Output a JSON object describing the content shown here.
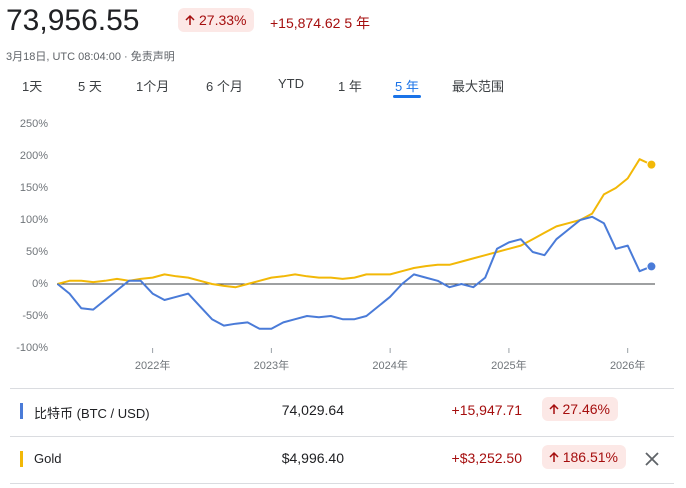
{
  "header": {
    "price": "73,956.55",
    "change_pct": "27.33%",
    "change_abs": "+15,874.62",
    "period": "5 年",
    "timestamp": "3月18日, UTC 08:04:00 · ",
    "disclaimer": "免责声明"
  },
  "tabs": [
    "1天",
    "5 天",
    "1个月",
    "6 个月",
    "YTD",
    "1 年",
    "5 年",
    "最大范围"
  ],
  "active_tab": 6,
  "chart_data": {
    "type": "line",
    "x": [
      2021.2,
      2021.3,
      2021.4,
      2021.5,
      2021.6,
      2021.7,
      2021.8,
      2021.9,
      2022.0,
      2022.1,
      2022.2,
      2022.3,
      2022.4,
      2022.5,
      2022.6,
      2022.7,
      2022.8,
      2022.9,
      2023.0,
      2023.1,
      2023.2,
      2023.3,
      2023.4,
      2023.5,
      2023.6,
      2023.7,
      2023.8,
      2023.9,
      2024.0,
      2024.1,
      2024.2,
      2024.3,
      2024.4,
      2024.5,
      2024.6,
      2024.7,
      2024.8,
      2024.9,
      2025.0,
      2025.1,
      2025.2,
      2025.3,
      2025.4,
      2025.5,
      2025.6,
      2025.7,
      2025.8,
      2025.9,
      2026.0,
      2026.1,
      2026.2
    ],
    "series": [
      {
        "name": "比特币 (BTC / USD)",
        "color": "#4a7bd8",
        "values": [
          0,
          -15,
          -38,
          -40,
          -25,
          -10,
          5,
          5,
          -15,
          -25,
          -20,
          -15,
          -35,
          -55,
          -65,
          -62,
          -60,
          -70,
          -70,
          -60,
          -55,
          -50,
          -52,
          -50,
          -55,
          -55,
          -50,
          -35,
          -20,
          0,
          15,
          10,
          5,
          -5,
          0,
          -5,
          10,
          55,
          65,
          70,
          50,
          45,
          70,
          85,
          100,
          105,
          95,
          55,
          60,
          20,
          27.46
        ]
      },
      {
        "name": "Gold",
        "color": "#f2b807",
        "values": [
          0,
          5,
          5,
          3,
          5,
          8,
          5,
          8,
          10,
          15,
          12,
          10,
          5,
          0,
          -3,
          -5,
          0,
          5,
          10,
          12,
          15,
          12,
          10,
          10,
          8,
          10,
          15,
          15,
          15,
          20,
          25,
          28,
          30,
          30,
          35,
          40,
          45,
          50,
          55,
          60,
          70,
          80,
          90,
          95,
          100,
          110,
          140,
          150,
          165,
          195,
          186.51
        ]
      }
    ],
    "xlim": [
      2021.195,
      2026.23
    ],
    "xticks": [
      {
        "value": 2022,
        "label": "2022年"
      },
      {
        "value": 2023,
        "label": "2023年"
      },
      {
        "value": 2024,
        "label": "2024年"
      },
      {
        "value": 2025,
        "label": "2025年"
      },
      {
        "value": 2026,
        "label": "2026年"
      }
    ],
    "ylim": [
      -100,
      250
    ],
    "yticks": [
      {
        "value": 250,
        "label": "250%"
      },
      {
        "value": 200,
        "label": "200%"
      },
      {
        "value": 150,
        "label": "150%"
      },
      {
        "value": 100,
        "label": "100%"
      },
      {
        "value": 50,
        "label": "50%"
      },
      {
        "value": 0,
        "label": "0%"
      },
      {
        "value": -50,
        "label": "-50%"
      },
      {
        "value": -100,
        "label": "-100%"
      }
    ],
    "grid": false
  },
  "compare": {
    "rows": [
      {
        "price": "74,029.64",
        "change_abs": "+15,947.71",
        "change_pct": "27.46%"
      },
      {
        "price": "$4,996.40",
        "change_abs": "+$3,252.50",
        "change_pct": "186.51%"
      }
    ]
  }
}
